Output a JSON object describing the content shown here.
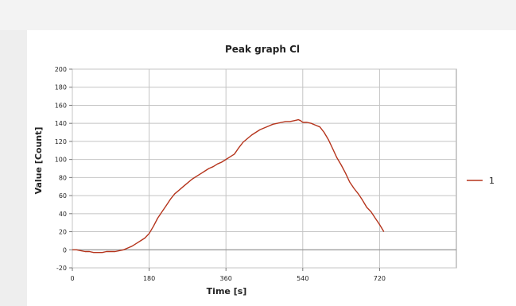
{
  "chart_data": {
    "type": "line",
    "title": "Peak graph Cl",
    "xlabel": "Time [s]",
    "ylabel": "Value [Count]",
    "xlim": [
      0,
      900
    ],
    "ylim": [
      -20,
      200
    ],
    "x_ticks": [
      0,
      180,
      360,
      540,
      720
    ],
    "y_ticks": [
      -20,
      0,
      20,
      40,
      60,
      80,
      100,
      120,
      140,
      160,
      180,
      200
    ],
    "grid": true,
    "legend_position": "right",
    "series": [
      {
        "name": "1",
        "color": "#b5341c",
        "x": [
          0,
          10,
          20,
          30,
          40,
          50,
          60,
          70,
          80,
          90,
          100,
          110,
          120,
          130,
          140,
          150,
          160,
          170,
          180,
          190,
          200,
          210,
          220,
          230,
          240,
          250,
          260,
          270,
          280,
          290,
          300,
          310,
          320,
          330,
          340,
          350,
          360,
          370,
          380,
          390,
          400,
          410,
          420,
          430,
          440,
          450,
          460,
          470,
          480,
          490,
          500,
          510,
          520,
          530,
          535,
          540,
          550,
          560,
          570,
          580,
          590,
          600,
          610,
          620,
          630,
          640,
          650,
          660,
          670,
          680,
          690,
          700,
          710,
          720,
          730
        ],
        "y": [
          0,
          0,
          -1,
          -2,
          -2,
          -3,
          -3,
          -3,
          -2,
          -2,
          -2,
          -1,
          0,
          2,
          4,
          7,
          10,
          13,
          18,
          26,
          35,
          42,
          49,
          56,
          62,
          66,
          70,
          74,
          78,
          81,
          84,
          87,
          90,
          92,
          95,
          97,
          100,
          103,
          106,
          113,
          119,
          123,
          127,
          130,
          133,
          135,
          137,
          139,
          140,
          141,
          142,
          142,
          143,
          144,
          143,
          141,
          141,
          140,
          138,
          136,
          130,
          122,
          112,
          102,
          94,
          85,
          75,
          68,
          62,
          55,
          47,
          42,
          35,
          28,
          20
        ]
      }
    ]
  }
}
